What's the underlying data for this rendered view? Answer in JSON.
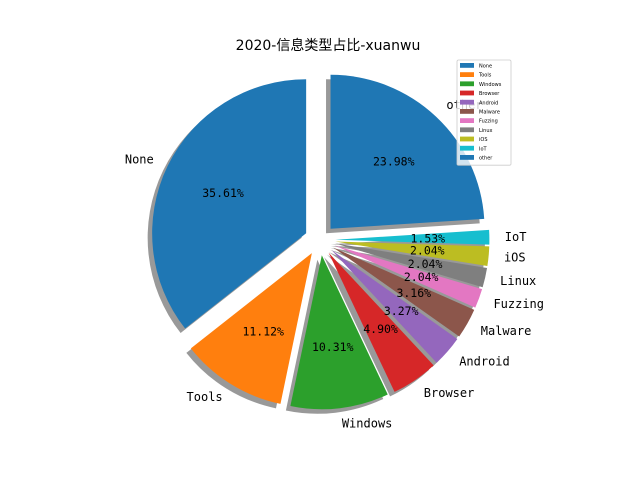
{
  "chart_data": {
    "type": "pie",
    "title": "2020-信息类型占比-xuanwu",
    "categories": [
      "None",
      "Tools",
      "Windows",
      "Browser",
      "Android",
      "Malware",
      "Fuzzing",
      "Linux",
      "iOS",
      "IoT",
      "other"
    ],
    "values": [
      35.61,
      11.12,
      10.31,
      4.9,
      3.27,
      3.16,
      2.04,
      2.04,
      2.04,
      1.53,
      23.98
    ],
    "value_labels": [
      "35.61%",
      "11.12%",
      "10.31%",
      "4.90%",
      "3.27%",
      "3.16%",
      "2.04%",
      "2.04%",
      "2.04%",
      "1.53%",
      "23.98%"
    ],
    "colors": [
      "#1f77b4",
      "#ff7f0e",
      "#2ca02c",
      "#d62728",
      "#9467bd",
      "#8c564b",
      "#e377c2",
      "#7f7f7f",
      "#bcbd22",
      "#17becf",
      "#1f77b4"
    ],
    "start_angle_deg": 90,
    "direction": "counterclockwise",
    "explode": [
      0.1,
      0.1,
      0.1,
      0.1,
      0.1,
      0.1,
      0.1,
      0.1,
      0.1,
      0.1,
      0.1
    ],
    "shadow": true,
    "legend": {
      "placement": "top-right",
      "entries": [
        "None",
        "Tools",
        "Windows",
        "Browser",
        "Android",
        "Malware",
        "Fuzzing",
        "Linux",
        "iOS",
        "IoT",
        "other"
      ]
    }
  }
}
